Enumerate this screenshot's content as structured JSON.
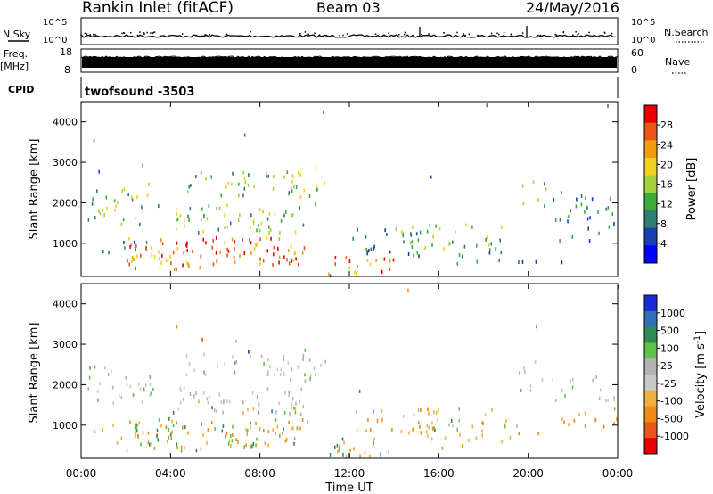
{
  "header": {
    "station": "Rankin Inlet (fitACF)",
    "beam": "Beam 03",
    "date": "24/May/2016"
  },
  "noise_panel": {
    "left_label": "N.Sky",
    "right_label": "N.Search",
    "left_ticks": [
      "10^5",
      "10^0"
    ],
    "right_ticks": [
      "10^5",
      "10^0"
    ]
  },
  "freq_panel": {
    "left_label_line1": "Freq.",
    "left_label_line2": "[MHz]",
    "right_label": "Nave",
    "left_ticks": [
      "18",
      "8"
    ],
    "right_ticks": [
      "60",
      "0"
    ]
  },
  "cpid_panel": {
    "label": "CPID",
    "program": "twofsound -3503"
  },
  "time_axis": {
    "label": "Time UT",
    "ticks": [
      "00:00",
      "04:00",
      "08:00",
      "12:00",
      "16:00",
      "20:00",
      "00:00"
    ]
  },
  "colors": {
    "power_scale": [
      "#0000ff",
      "#1a3fb0",
      "#2e7d6e",
      "#3daa3d",
      "#a5d23a",
      "#f0d020",
      "#f39c12",
      "#e8561a",
      "#e60000"
    ],
    "velocity_scale": [
      "#1a2bd1",
      "#2e6fb5",
      "#2e8b57",
      "#5ec24a",
      "#b3b3b3",
      "#c8c8c8",
      "#f0b040",
      "#ee8a18",
      "#e8561a",
      "#e60000"
    ]
  },
  "chart_data": [
    {
      "type": "heatmap",
      "title": "Power",
      "xlabel": "Time UT",
      "ylabel": "Slant Range [km]",
      "ylim": [
        180,
        4500
      ],
      "yticks": [
        "1000",
        "2000",
        "3000",
        "4000"
      ],
      "colorbar_label": "Power [dB]",
      "colorbar_ticks": [
        "4",
        "8",
        "12",
        "16",
        "20",
        "24",
        "28"
      ]
    },
    {
      "type": "heatmap",
      "title": "Velocity",
      "xlabel": "Time UT",
      "ylabel": "Slant Range [km]",
      "ylim": [
        180,
        4500
      ],
      "yticks": [
        "1000",
        "2000",
        "3000",
        "4000"
      ],
      "colorbar_label": "Velocity [m s^-1]",
      "colorbar_ticks": [
        "1000",
        "500",
        "100",
        "25",
        "-25",
        "-100",
        "-500",
        "-1000"
      ]
    }
  ]
}
